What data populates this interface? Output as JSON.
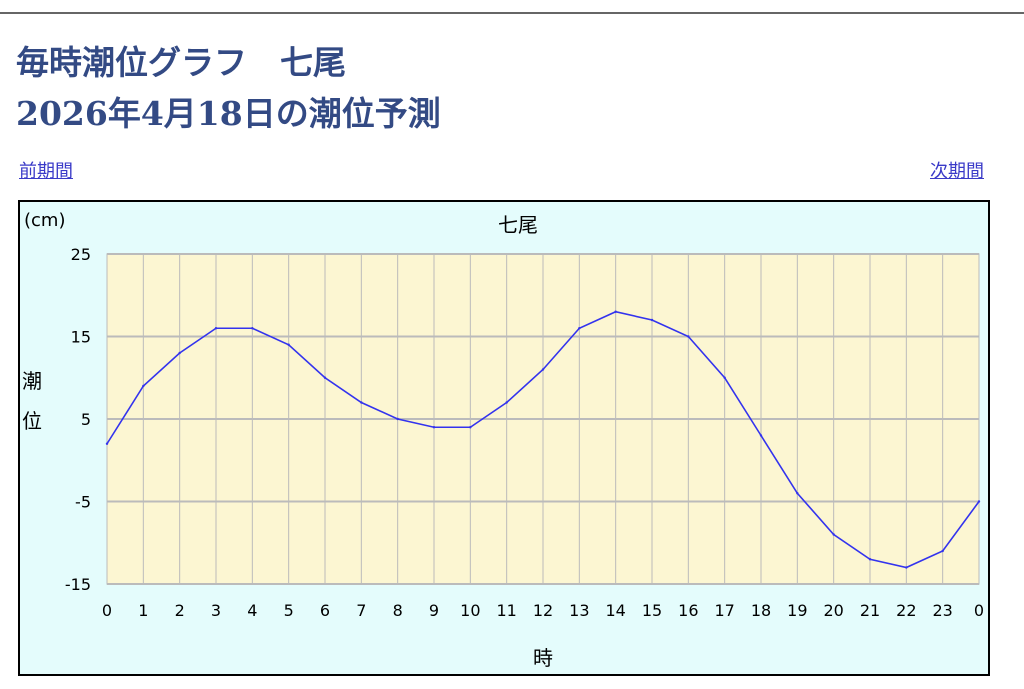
{
  "page": {
    "title_line1": "毎時潮位グラフ　七尾",
    "title_line2": "2026年4月18日の潮位予測",
    "prev_label": "前期間",
    "next_label": "次期間"
  },
  "chart_data": {
    "type": "line",
    "title": "七尾",
    "ylabel_unit": "(cm)",
    "ylabel": "潮位",
    "xlabel": "時",
    "ylim": [
      -15,
      25
    ],
    "yticks": [
      25,
      15,
      5,
      -5,
      -15
    ],
    "categories": [
      "0",
      "1",
      "2",
      "3",
      "4",
      "5",
      "6",
      "7",
      "8",
      "9",
      "10",
      "11",
      "12",
      "13",
      "14",
      "15",
      "16",
      "17",
      "18",
      "19",
      "20",
      "21",
      "22",
      "23",
      "0"
    ],
    "series": [
      {
        "values": [
          2,
          9,
          13,
          16,
          16,
          14,
          10,
          7,
          5,
          4,
          4,
          7,
          11,
          16,
          18,
          17,
          15,
          10,
          3,
          -4,
          -9,
          -12,
          -13,
          -11,
          -5
        ]
      }
    ],
    "grid": true,
    "colors": {
      "line": "#3333ee",
      "plot_bg": "#fcf6d2",
      "grid": "#bbbbbb",
      "chart_bg": "#e4fcfc"
    }
  }
}
